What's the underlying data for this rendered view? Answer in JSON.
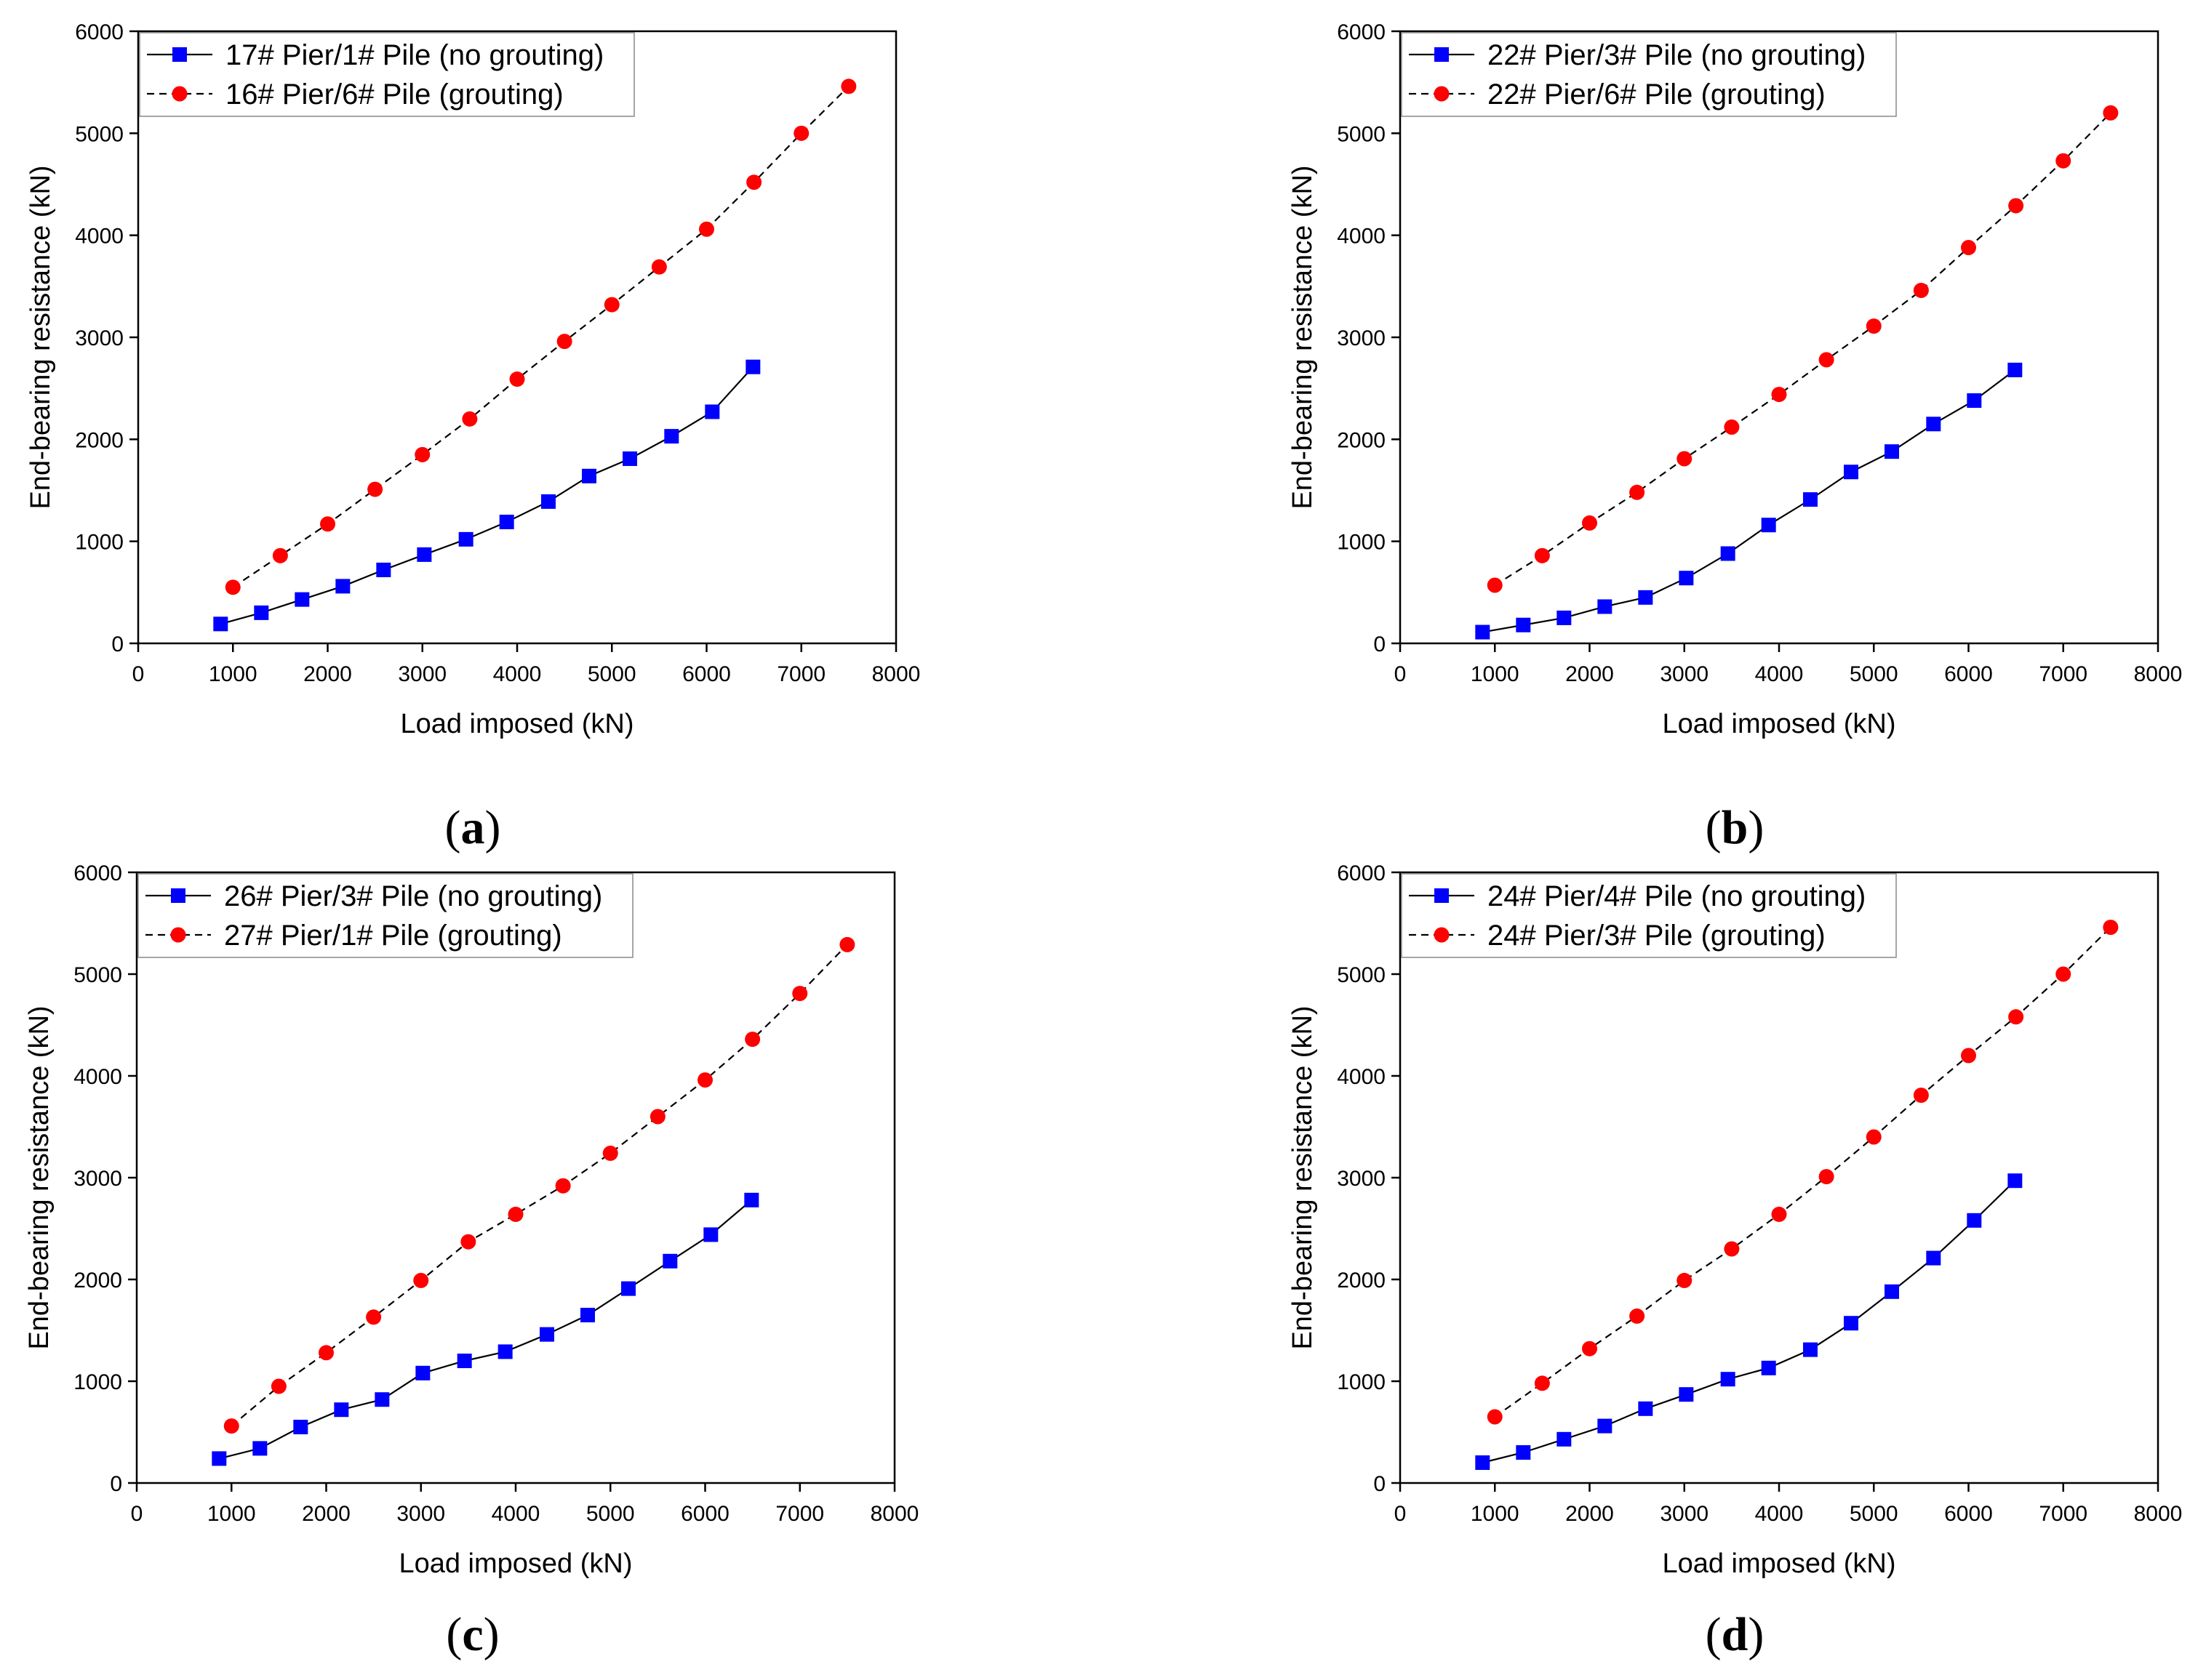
{
  "chart_data": [
    {
      "panel": "a",
      "type": "line",
      "xlabel": "Load imposed (kN)",
      "ylabel": "End-bearing resistance (kN)",
      "xlim": [
        0,
        8000
      ],
      "ylim": [
        0,
        6000
      ],
      "xticks": [
        0,
        1000,
        2000,
        3000,
        4000,
        5000,
        6000,
        7000,
        8000
      ],
      "yticks": [
        0,
        1000,
        2000,
        3000,
        4000,
        5000,
        6000
      ],
      "legend_position": "top-left",
      "series": [
        {
          "name": "17# Pier/1# Pile (no grouting)",
          "color": "#0000ff",
          "marker": "square",
          "line": "solid",
          "x": [
            870,
            1300,
            1730,
            2160,
            2590,
            3020,
            3460,
            3890,
            4330,
            4760,
            5190,
            5630,
            6060,
            6490
          ],
          "y": [
            190,
            300,
            430,
            560,
            720,
            870,
            1020,
            1190,
            1390,
            1640,
            1810,
            2030,
            2270,
            2710
          ]
        },
        {
          "name": "16# Pier/6# Pile (grouting)",
          "color": "#ff0000",
          "marker": "circle",
          "line": "dashed",
          "x": [
            1000,
            1500,
            2000,
            2500,
            3000,
            3500,
            4000,
            4500,
            5000,
            5500,
            6000,
            6500,
            7000,
            7500
          ],
          "y": [
            550,
            860,
            1170,
            1510,
            1850,
            2200,
            2590,
            2960,
            3320,
            3690,
            4060,
            4520,
            5000,
            5460
          ]
        }
      ]
    },
    {
      "panel": "b",
      "type": "line",
      "xlabel": "Load imposed (kN)",
      "ylabel": "End-bearing resistance (kN)",
      "xlim": [
        0,
        8000
      ],
      "ylim": [
        0,
        6000
      ],
      "xticks": [
        0,
        1000,
        2000,
        3000,
        4000,
        5000,
        6000,
        7000,
        8000
      ],
      "yticks": [
        0,
        1000,
        2000,
        3000,
        4000,
        5000,
        6000
      ],
      "legend_position": "top-left",
      "series": [
        {
          "name": "22# Pier/3# Pile (no grouting)",
          "color": "#0000ff",
          "marker": "square",
          "line": "solid",
          "x": [
            870,
            1300,
            1730,
            2160,
            2590,
            3020,
            3460,
            3890,
            4330,
            4760,
            5190,
            5630,
            6060,
            6490
          ],
          "y": [
            110,
            180,
            250,
            360,
            450,
            640,
            880,
            1160,
            1410,
            1680,
            1880,
            2150,
            2380,
            2680
          ]
        },
        {
          "name": "22# Pier/6# Pile (grouting)",
          "color": "#ff0000",
          "marker": "circle",
          "line": "dashed",
          "x": [
            1000,
            1500,
            2000,
            2500,
            3000,
            3500,
            4000,
            4500,
            5000,
            5500,
            6000,
            6500,
            7000,
            7500
          ],
          "y": [
            570,
            860,
            1180,
            1480,
            1810,
            2120,
            2440,
            2780,
            3110,
            3460,
            3880,
            4290,
            4730,
            5200
          ]
        }
      ]
    },
    {
      "panel": "c",
      "type": "line",
      "xlabel": "Load imposed (kN)",
      "ylabel": "End-bearing resistance (kN)",
      "xlim": [
        0,
        8000
      ],
      "ylim": [
        0,
        6000
      ],
      "xticks": [
        0,
        1000,
        2000,
        3000,
        4000,
        5000,
        6000,
        7000,
        8000
      ],
      "yticks": [
        0,
        1000,
        2000,
        3000,
        4000,
        5000,
        6000
      ],
      "legend_position": "top-left",
      "series": [
        {
          "name": "26# Pier/3# Pile (no grouting)",
          "color": "#0000ff",
          "marker": "square",
          "line": "solid",
          "x": [
            870,
            1300,
            1730,
            2160,
            2590,
            3020,
            3460,
            3890,
            4330,
            4760,
            5190,
            5630,
            6060,
            6490
          ],
          "y": [
            240,
            340,
            550,
            720,
            820,
            1080,
            1200,
            1290,
            1460,
            1650,
            1910,
            2180,
            2440,
            2780
          ]
        },
        {
          "name": "27# Pier/1# Pile (grouting)",
          "color": "#ff0000",
          "marker": "circle",
          "line": "dashed",
          "x": [
            1000,
            1500,
            2000,
            2500,
            3000,
            3500,
            4000,
            4500,
            5000,
            5500,
            6000,
            6500,
            7000,
            7500
          ],
          "y": [
            560,
            950,
            1280,
            1630,
            1990,
            2370,
            2640,
            2920,
            3240,
            3600,
            3960,
            4360,
            4810,
            5290
          ]
        }
      ]
    },
    {
      "panel": "d",
      "type": "line",
      "xlabel": "Load imposed (kN)",
      "ylabel": "End-bearing resistance (kN)",
      "xlim": [
        0,
        8000
      ],
      "ylim": [
        0,
        6000
      ],
      "xticks": [
        0,
        1000,
        2000,
        3000,
        4000,
        5000,
        6000,
        7000,
        8000
      ],
      "yticks": [
        0,
        1000,
        2000,
        3000,
        4000,
        5000,
        6000
      ],
      "legend_position": "top-left",
      "series": [
        {
          "name": "24# Pier/4# Pile (no grouting)",
          "color": "#0000ff",
          "marker": "square",
          "line": "solid",
          "x": [
            870,
            1300,
            1730,
            2160,
            2590,
            3020,
            3460,
            3890,
            4330,
            4760,
            5190,
            5630,
            6060,
            6490
          ],
          "y": [
            200,
            300,
            430,
            560,
            730,
            870,
            1020,
            1130,
            1310,
            1570,
            1880,
            2210,
            2580,
            2970
          ]
        },
        {
          "name": "24# Pier/3# Pile (grouting)",
          "color": "#ff0000",
          "marker": "circle",
          "line": "dashed",
          "x": [
            1000,
            1500,
            2000,
            2500,
            3000,
            3500,
            4000,
            4500,
            5000,
            5500,
            6000,
            6500,
            7000,
            7500
          ],
          "y": [
            650,
            980,
            1320,
            1640,
            1990,
            2300,
            2640,
            3010,
            3400,
            3810,
            4200,
            4580,
            5000,
            5460
          ]
        }
      ]
    }
  ],
  "panel_labels": [
    {
      "open": "(",
      "letter": "a",
      "close": ")"
    },
    {
      "open": "(",
      "letter": "b",
      "close": ")"
    },
    {
      "open": "(",
      "letter": "c",
      "close": ")"
    },
    {
      "open": "(",
      "letter": "d",
      "close": ")"
    }
  ]
}
